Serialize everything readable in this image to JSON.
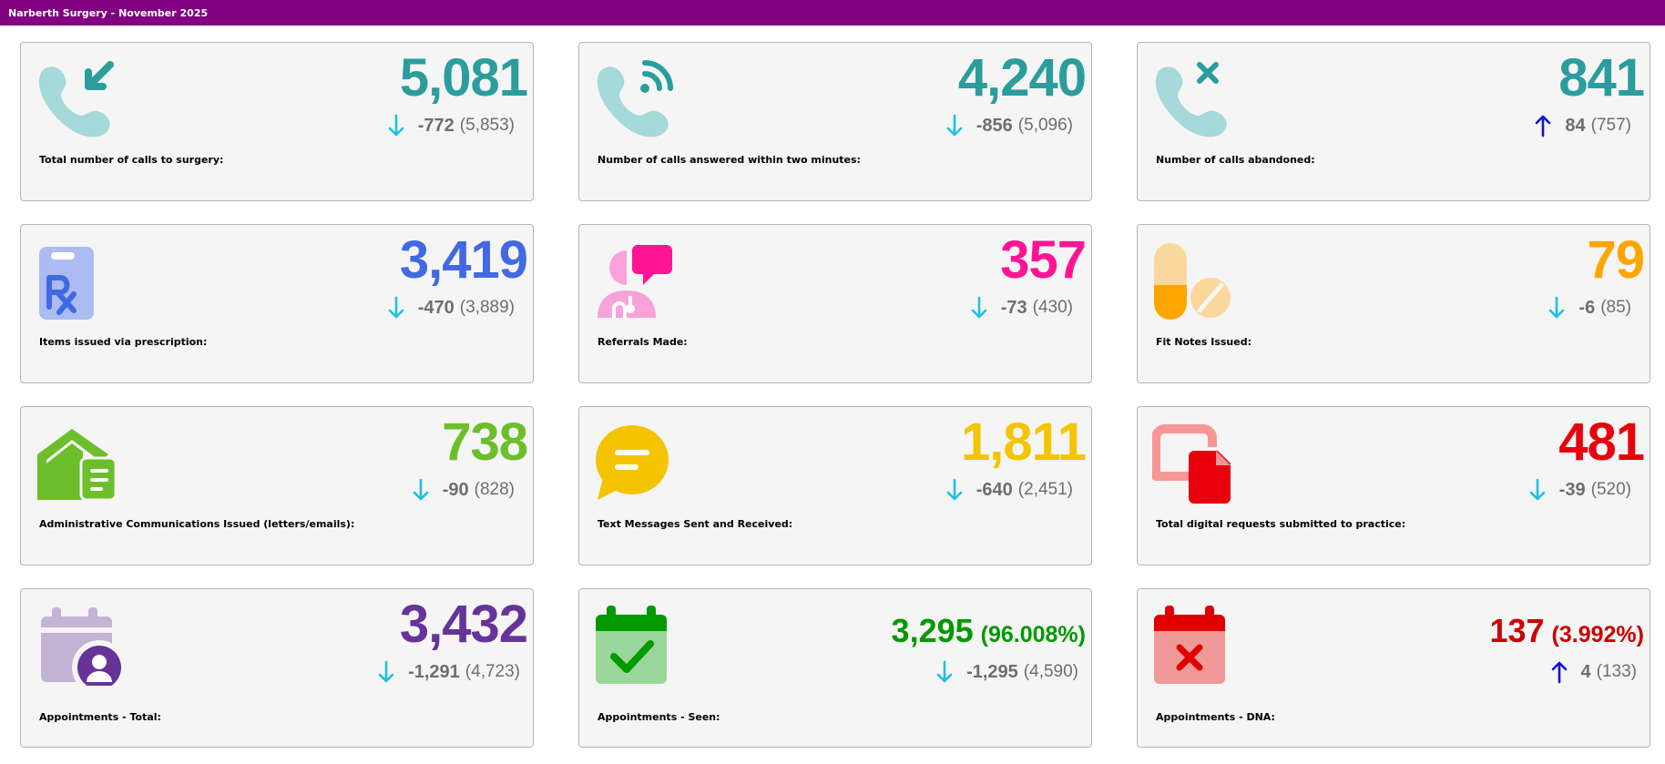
{
  "header": {
    "title": "Narberth Surgery - November 2025"
  },
  "colors": {
    "header_bg": "#800080",
    "teal": "#2a9d9c",
    "blue": "#4169e1",
    "pink": "#ff1493",
    "orange": "#ffa500",
    "green": "#6cbf2a",
    "yellow": "#f5c400",
    "red": "#e8000d",
    "purple": "#663399",
    "dark_green": "#009900",
    "dna_red": "#cc0000",
    "arrow_down": "#1ec0e6",
    "arrow_up": "#1010e0"
  },
  "cards": [
    {
      "label": "Total number of calls to surgery:",
      "value": "5,081",
      "change": "-772",
      "previous": "(5,853)",
      "direction": "down",
      "icon": "incoming-call-icon"
    },
    {
      "label": "Number of calls answered within two minutes:",
      "value": "4,240",
      "change": "-856",
      "previous": "(5,096)",
      "direction": "down",
      "icon": "phone-signal-icon"
    },
    {
      "label": "Number of calls abandoned:",
      "value": "841",
      "change": "84",
      "previous": "(757)",
      "direction": "up",
      "icon": "missed-call-icon"
    },
    {
      "label": "Items issued via prescription:",
      "value": "3,419",
      "change": "-470",
      "previous": "(3,889)",
      "direction": "down",
      "icon": "prescription-clipboard-icon"
    },
    {
      "label": "Referrals Made:",
      "value": "357",
      "change": "-73",
      "previous": "(430)",
      "direction": "down",
      "icon": "doctor-chat-icon"
    },
    {
      "label": "Fit Notes Issued:",
      "value": "79",
      "change": "-6",
      "previous": "(85)",
      "direction": "down",
      "icon": "pills-icon"
    },
    {
      "label": "Administrative Communications Issued (letters/emails):",
      "value": "738",
      "change": "-90",
      "previous": "(828)",
      "direction": "down",
      "icon": "house-letter-icon"
    },
    {
      "label": "Text Messages Sent and Received:",
      "value": "1,811",
      "change": "-640",
      "previous": "(2,451)",
      "direction": "down",
      "icon": "message-bubble-icon"
    },
    {
      "label": "Total digital requests submitted to practice:",
      "value": "481",
      "change": "-39",
      "previous": "(520)",
      "direction": "down",
      "icon": "digital-document-icon"
    },
    {
      "label": "Appointments - Total:",
      "value": "3,432",
      "change": "-1,291",
      "previous": "(4,723)",
      "direction": "down",
      "icon": "calendar-person-icon"
    },
    {
      "label": "Appointments - Seen:",
      "value": "3,295",
      "percent": "(96.008%)",
      "change": "-1,295",
      "previous": "(4,590)",
      "direction": "down",
      "icon": "calendar-check-icon"
    },
    {
      "label": "Appointments - DNA:",
      "value": "137",
      "percent": "(3.992%)",
      "change": "4",
      "previous": "(133)",
      "direction": "up",
      "icon": "calendar-cross-icon"
    }
  ]
}
